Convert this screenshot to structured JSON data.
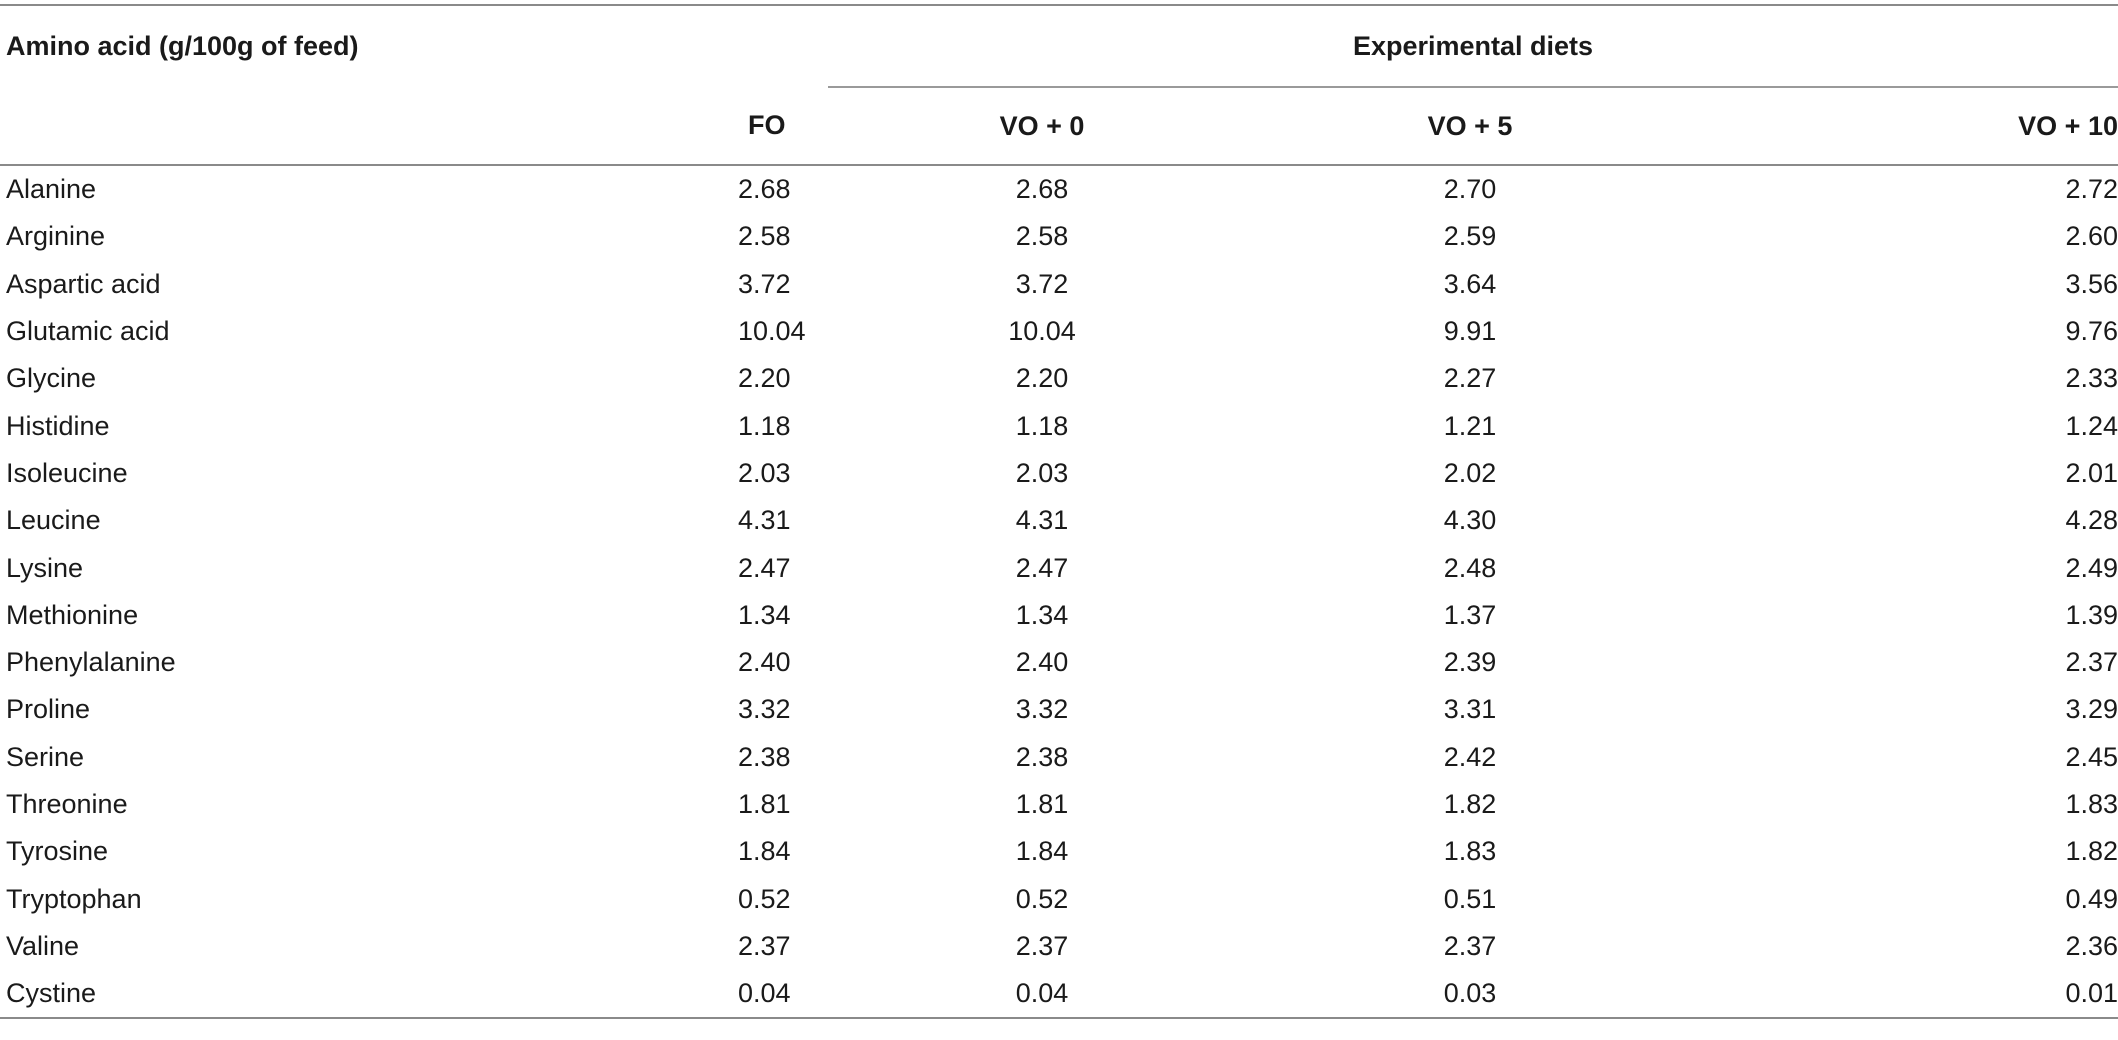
{
  "table": {
    "stub_header": "Amino acid (g/100g of feed)",
    "group_header": "Experimental diets",
    "columns": [
      "FO",
      "VO + 0",
      "VO + 5",
      "VO + 10"
    ],
    "rows": [
      {
        "name": "Alanine",
        "values": [
          "2.68",
          "2.68",
          "2.70",
          "2.72"
        ]
      },
      {
        "name": "Arginine",
        "values": [
          "2.58",
          "2.58",
          "2.59",
          "2.60"
        ]
      },
      {
        "name": "Aspartic acid",
        "values": [
          "3.72",
          "3.72",
          "3.64",
          "3.56"
        ]
      },
      {
        "name": "Glutamic acid",
        "values": [
          "10.04",
          "10.04",
          "9.91",
          "9.76"
        ]
      },
      {
        "name": "Glycine",
        "values": [
          "2.20",
          "2.20",
          "2.27",
          "2.33"
        ]
      },
      {
        "name": "Histidine",
        "values": [
          "1.18",
          "1.18",
          "1.21",
          "1.24"
        ]
      },
      {
        "name": "Isoleucine",
        "values": [
          "2.03",
          "2.03",
          "2.02",
          "2.01"
        ]
      },
      {
        "name": "Leucine",
        "values": [
          "4.31",
          "4.31",
          "4.30",
          "4.28"
        ]
      },
      {
        "name": "Lysine",
        "values": [
          "2.47",
          "2.47",
          "2.48",
          "2.49"
        ]
      },
      {
        "name": "Methionine",
        "values": [
          "1.34",
          "1.34",
          "1.37",
          "1.39"
        ]
      },
      {
        "name": "Phenylalanine",
        "values": [
          "2.40",
          "2.40",
          "2.39",
          "2.37"
        ]
      },
      {
        "name": "Proline",
        "values": [
          "3.32",
          "3.32",
          "3.31",
          "3.29"
        ]
      },
      {
        "name": "Serine",
        "values": [
          "2.38",
          "2.38",
          "2.42",
          "2.45"
        ]
      },
      {
        "name": "Threonine",
        "values": [
          "1.81",
          "1.81",
          "1.82",
          "1.83"
        ]
      },
      {
        "name": "Tyrosine",
        "values": [
          "1.84",
          "1.84",
          "1.83",
          "1.82"
        ]
      },
      {
        "name": "Tryptophan",
        "values": [
          "0.52",
          "0.52",
          "0.51",
          "0.49"
        ]
      },
      {
        "name": "Valine",
        "values": [
          "2.37",
          "2.37",
          "2.37",
          "2.36"
        ]
      },
      {
        "name": "Cystine",
        "values": [
          "0.04",
          "0.04",
          "0.03",
          "0.01"
        ]
      }
    ]
  }
}
